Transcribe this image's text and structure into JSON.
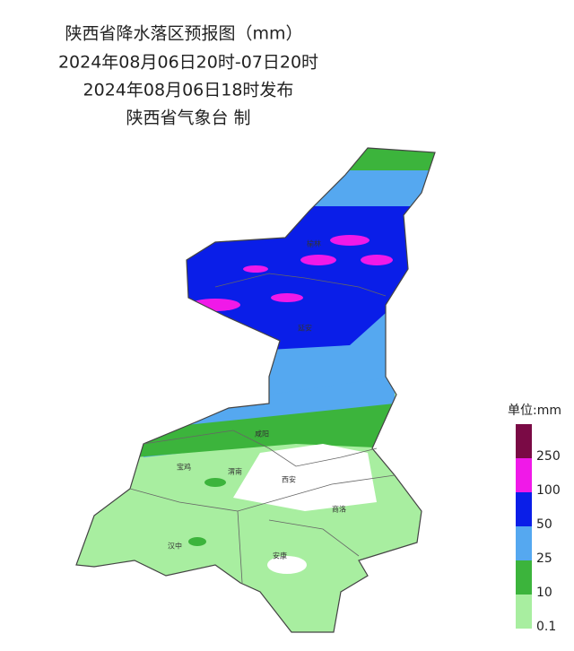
{
  "title": "陕西省降水落区预报图（mm）",
  "valid_time": "2024年08月06日20时-07日20时",
  "issue_time": "2024年08月06日18时发布",
  "issuer": "陕西省气象台 制",
  "legend": {
    "title": "单位:mm",
    "labels": [
      250,
      100,
      50,
      25,
      10,
      0.1
    ],
    "colors": [
      "#7a0a45",
      "#f019e8",
      "#0a1ee8",
      "#55a8f0",
      "#3cb43c",
      "#a8eea0"
    ]
  },
  "cities": [
    "延安",
    "咸阳",
    "宝鸡",
    "渭南",
    "西安",
    "商洛",
    "汉中",
    "安康",
    "榆林"
  ]
}
